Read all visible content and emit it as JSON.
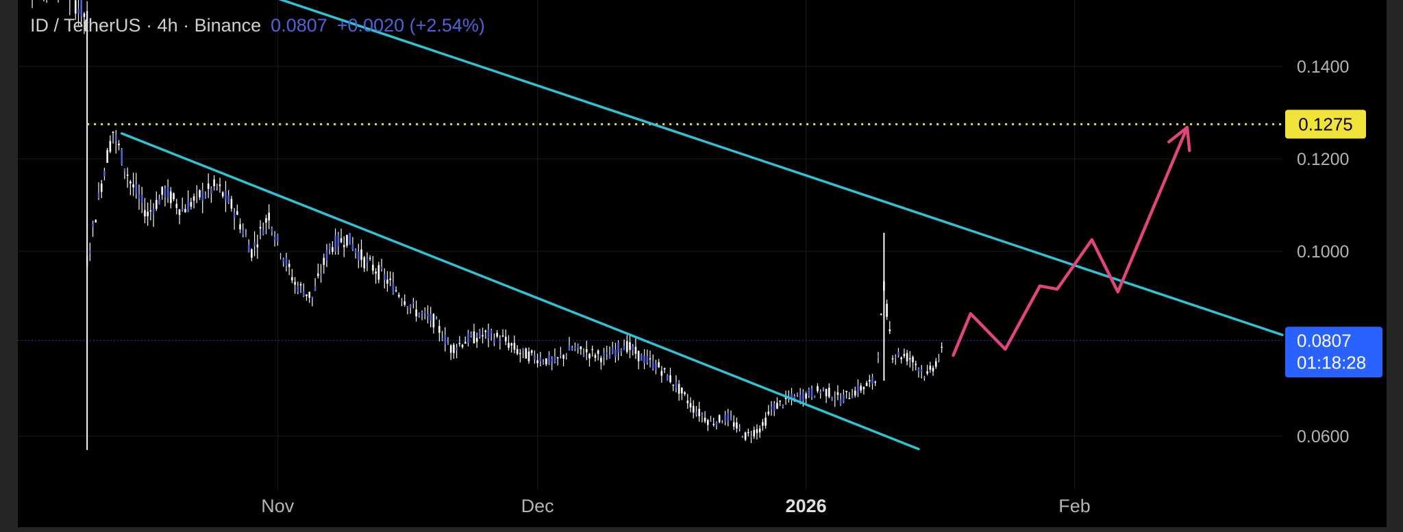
{
  "header": {
    "symbol": "ID / TetherUS · 4h · Binance",
    "price": "0.0807",
    "change": "+0.0020 (+2.54%)"
  },
  "colors": {
    "background": "#000000",
    "frame": "#262626",
    "candle": "#4f63d9",
    "wick": "#ffffff",
    "channel_line": "#2ec4d8",
    "projection_arrow": "#e0457b",
    "level_line": "#f2e33a",
    "price_tag": "#2962ff"
  },
  "chart_data": {
    "type": "line",
    "title": "ID / TetherUS · 4h · Binance",
    "xlabel": "",
    "ylabel": "",
    "y_axis_position": "right",
    "ylim": [
      0.051,
      0.163
    ],
    "y_ticks": [
      "0.1400",
      "0.1200",
      "0.1000",
      "0.0600"
    ],
    "x_range": [
      "2025-10-02",
      "2026-02-25"
    ],
    "x_ticks": [
      {
        "label": "Nov",
        "date": "2025-11-01",
        "bold": false
      },
      {
        "label": "Dec",
        "date": "2025-12-01",
        "bold": false
      },
      {
        "label": "2026",
        "date": "2026-01-01",
        "bold": true
      },
      {
        "label": "Feb",
        "date": "2026-02-01",
        "bold": false
      }
    ],
    "grid": true,
    "series": [
      {
        "kind": "price",
        "x": [
          "2025-10-02",
          "2025-10-05",
          "2025-10-07",
          "2025-10-10",
          "2025-10-10",
          "2025-10-11",
          "2025-10-12",
          "2025-10-13",
          "2025-10-15",
          "2025-10-17",
          "2025-10-19",
          "2025-10-21",
          "2025-10-23",
          "2025-10-25",
          "2025-10-27",
          "2025-10-29",
          "2025-10-31",
          "2025-11-01",
          "2025-11-03",
          "2025-11-05",
          "2025-11-07",
          "2025-11-09",
          "2025-11-11",
          "2025-11-13",
          "2025-11-15",
          "2025-11-17",
          "2025-11-19",
          "2025-11-21",
          "2025-11-23",
          "2025-11-25",
          "2025-11-27",
          "2025-11-29",
          "2025-12-01",
          "2025-12-03",
          "2025-12-05",
          "2025-12-07",
          "2025-12-09",
          "2025-12-11",
          "2025-12-13",
          "2025-12-15",
          "2025-12-17",
          "2025-12-19",
          "2025-12-21",
          "2025-12-23",
          "2025-12-25",
          "2025-12-27",
          "2025-12-28",
          "2025-12-30",
          "2026-01-01",
          "2026-01-03",
          "2026-01-05",
          "2026-01-07",
          "2026-01-09",
          "2026-01-10",
          "2026-01-11",
          "2026-01-13",
          "2026-01-15",
          "2026-01-17"
        ],
        "values": [
          0.16,
          0.158,
          0.159,
          0.15,
          0.098,
          0.108,
          0.118,
          0.126,
          0.115,
          0.108,
          0.113,
          0.109,
          0.112,
          0.114,
          0.109,
          0.1,
          0.108,
          0.102,
          0.093,
          0.09,
          0.101,
          0.103,
          0.098,
          0.095,
          0.091,
          0.087,
          0.085,
          0.079,
          0.081,
          0.082,
          0.081,
          0.078,
          0.077,
          0.076,
          0.079,
          0.078,
          0.077,
          0.08,
          0.077,
          0.075,
          0.071,
          0.066,
          0.063,
          0.064,
          0.06,
          0.062,
          0.066,
          0.068,
          0.069,
          0.07,
          0.068,
          0.07,
          0.072,
          0.092,
          0.078,
          0.077,
          0.073,
          0.079
        ]
      },
      {
        "kind": "wick_extremes",
        "x": [
          "2025-10-10",
          "2025-10-10",
          "2026-01-10",
          "2025-12-25"
        ],
        "values": [
          0.152,
          0.057,
          0.104,
          0.057
        ]
      },
      {
        "kind": "trendline_upper",
        "x": [
          "2025-10-06",
          "2026-02-25"
        ],
        "values": [
          0.171,
          0.0819
        ]
      },
      {
        "kind": "trendline_lower",
        "x": [
          "2025-10-14",
          "2026-01-14"
        ],
        "values": [
          0.1255,
          0.0572
        ]
      },
      {
        "kind": "projection",
        "x": [
          "2026-01-18",
          "2026-01-20",
          "2026-01-24",
          "2026-01-28",
          "2026-01-30",
          "2026-02-03",
          "2026-02-06",
          "2026-02-14"
        ],
        "values": [
          0.0775,
          0.0865,
          0.0788,
          0.0925,
          0.0918,
          0.1025,
          0.0912,
          0.1268
        ]
      },
      {
        "kind": "level",
        "x": [
          "2025-10-10",
          "2026-02-25"
        ],
        "values": [
          0.1275,
          0.1275
        ]
      }
    ],
    "annotations": [
      {
        "kind": "level_tag",
        "text": "0.1275",
        "value": 0.1275
      },
      {
        "kind": "price_tag",
        "text": "0.0807",
        "countdown": "01:18:28",
        "value": 0.0807
      }
    ]
  }
}
